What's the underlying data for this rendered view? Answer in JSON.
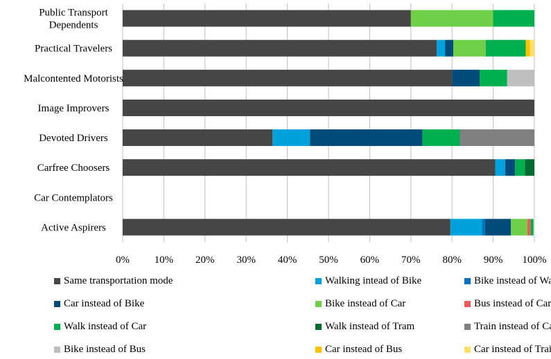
{
  "chart_data": {
    "type": "bar",
    "orientation": "horizontal",
    "stacked": true,
    "title": "",
    "xlabel": "",
    "ylabel": "",
    "xlim": [
      0,
      100
    ],
    "x_unit": "%",
    "ticks": [
      "0%",
      "10%",
      "20%",
      "30%",
      "40%",
      "50%",
      "60%",
      "70%",
      "80%",
      "90%",
      "100%"
    ],
    "grid": true,
    "legend_position": "bottom",
    "categories": [
      "Public Transport Dependents",
      "Practical Travelers",
      "Malcontented Motorists",
      "Image Improvers",
      "Devoted Drivers",
      "Carfree Choosers",
      "Car Contemplators",
      "Active Aspirers"
    ],
    "category_lines": [
      [
        "Public Transport",
        "Dependents"
      ],
      [
        "Practical Travelers"
      ],
      [
        "Malcontented Motorists"
      ],
      [
        "Image Improvers"
      ],
      [
        "Devoted Drivers"
      ],
      [
        "Carfree Choosers"
      ],
      [
        "Car Contemplators"
      ],
      [
        "Active Aspirers"
      ]
    ],
    "series": [
      {
        "name": "Same transportation mode",
        "color": "#464646",
        "values": [
          70.0,
          76.3,
          80.0,
          100.0,
          36.4,
          90.5,
          0,
          79.6
        ]
      },
      {
        "name": "Walking intead of Bike",
        "color": "#00a2de",
        "values": [
          0,
          2.0,
          0,
          0,
          9.1,
          2.4,
          0,
          7.7
        ]
      },
      {
        "name": "Bike instead of Walk",
        "color": "#0070c0",
        "values": [
          0,
          0,
          0,
          0,
          0,
          0,
          0,
          0.7
        ]
      },
      {
        "name": "Car instead of Bike",
        "color": "#004b7a",
        "values": [
          0,
          2.0,
          6.7,
          0,
          27.3,
          2.4,
          0,
          6.3
        ]
      },
      {
        "name": "Bike instead of Car",
        "color": "#6fcf48",
        "values": [
          20.0,
          7.9,
          0,
          0,
          0,
          0,
          0,
          4.0
        ]
      },
      {
        "name": "Bus instead of Car",
        "color": "#ef5a5a",
        "values": [
          0,
          0,
          0,
          0,
          0,
          0,
          0,
          0.8
        ]
      },
      {
        "name": "Walk instead of Car",
        "color": "#00b050",
        "values": [
          10.0,
          9.7,
          6.7,
          0,
          9.1,
          2.4,
          0,
          0.7
        ]
      },
      {
        "name": "Walk instead of Tram",
        "color": "#006b2e",
        "values": [
          0,
          0,
          0,
          0,
          0,
          2.3,
          0,
          0
        ]
      },
      {
        "name": "Train instead of Car",
        "color": "#808080",
        "values": [
          0,
          0,
          0,
          0,
          18.1,
          0,
          0,
          0
        ]
      },
      {
        "name": "Bike instead of Bus",
        "color": "#bfbfbf",
        "values": [
          0,
          0,
          6.6,
          0,
          0,
          0,
          0,
          0
        ]
      },
      {
        "name": "Car instead of Bus",
        "color": "#ffc000",
        "values": [
          0,
          1.0,
          0,
          0,
          0,
          0,
          0,
          0
        ]
      },
      {
        "name": "Car instead of Train",
        "color": "#ffe066",
        "values": [
          0,
          1.1,
          0,
          0,
          0,
          0,
          0,
          0
        ]
      }
    ]
  }
}
